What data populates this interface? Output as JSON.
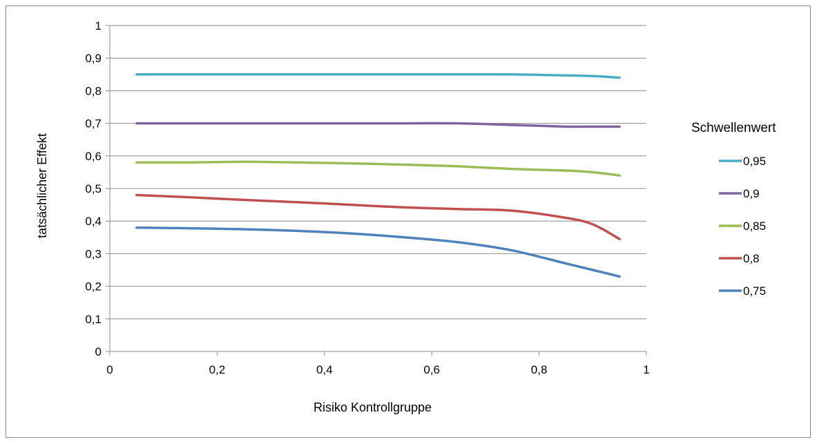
{
  "chart_data": {
    "type": "line",
    "title": "",
    "xlabel": "Risiko Kontrollgruppe",
    "ylabel": "tatsächlicher Effekt",
    "xlim": [
      0,
      1
    ],
    "ylim": [
      0,
      1
    ],
    "x_ticks": [
      0,
      0.2,
      0.4,
      0.6,
      0.8,
      1
    ],
    "x_tick_labels": [
      "0",
      "0,2",
      "0,4",
      "0,6",
      "0,8",
      "1"
    ],
    "y_ticks": [
      0,
      0.1,
      0.2,
      0.3,
      0.4,
      0.5,
      0.6,
      0.7,
      0.8,
      0.9,
      1
    ],
    "y_tick_labels": [
      "0",
      "0,1",
      "0,2",
      "0,3",
      "0,4",
      "0,5",
      "0,6",
      "0,7",
      "0,8",
      "0,9",
      "1"
    ],
    "grid": "horizontal",
    "legend_title": "Schwellenwert",
    "legend_position": "right",
    "x": [
      0.05,
      0.15,
      0.25,
      0.35,
      0.45,
      0.55,
      0.65,
      0.75,
      0.85,
      0.9,
      0.95
    ],
    "series": [
      {
        "name": "0,95",
        "color": "#4bacc6",
        "values": [
          0.85,
          0.85,
          0.85,
          0.85,
          0.85,
          0.85,
          0.85,
          0.85,
          0.847,
          0.845,
          0.84
        ]
      },
      {
        "name": "0,9",
        "color": "#8064a2",
        "values": [
          0.7,
          0.7,
          0.7,
          0.7,
          0.7,
          0.7,
          0.7,
          0.695,
          0.69,
          0.69,
          0.69
        ]
      },
      {
        "name": "0,85",
        "color": "#9bbb59",
        "values": [
          0.58,
          0.58,
          0.582,
          0.58,
          0.577,
          0.573,
          0.568,
          0.56,
          0.555,
          0.55,
          0.54
        ]
      },
      {
        "name": "0,8",
        "color": "#c0504d",
        "values": [
          0.48,
          0.473,
          0.465,
          0.458,
          0.45,
          0.442,
          0.437,
          0.432,
          0.41,
          0.39,
          0.345
        ]
      },
      {
        "name": "0,75",
        "color": "#4f81bd",
        "values": [
          0.38,
          0.378,
          0.375,
          0.37,
          0.362,
          0.35,
          0.335,
          0.31,
          0.27,
          0.25,
          0.23
        ]
      }
    ]
  }
}
